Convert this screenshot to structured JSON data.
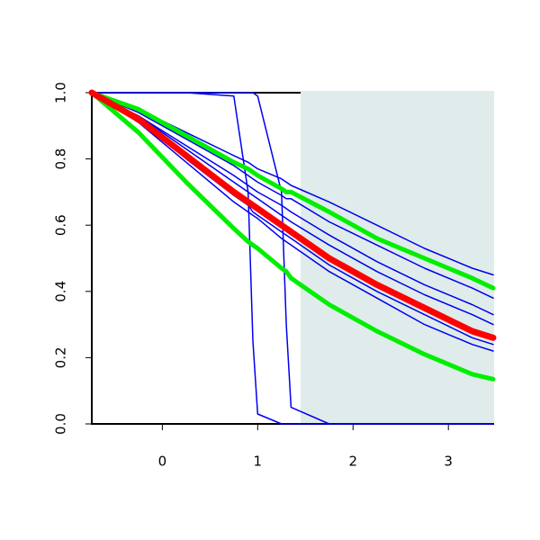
{
  "chart_data": {
    "type": "line",
    "x": [
      -0.74,
      -0.25,
      0.25,
      0.75,
      0.9,
      0.95,
      1.0,
      1.25,
      1.3,
      1.35,
      1.75,
      2.25,
      2.75,
      3.25,
      3.47
    ],
    "xlim": [
      -0.74,
      3.47
    ],
    "ylim": [
      0,
      1
    ],
    "xticks": [
      0,
      1,
      2,
      3
    ],
    "yticks": [
      {
        "value": 0,
        "label": "0.0"
      },
      0.2,
      0.4,
      0.6,
      0.8,
      {
        "value": 1,
        "label": "1.0"
      }
    ],
    "shaded_region": {
      "xmin": 1.45,
      "color": "#dfeceb"
    },
    "series": [
      {
        "color": "#0000ee",
        "width": 1.5,
        "values": [
          1,
          0.95,
          0.88,
          0.81,
          0.79,
          0.78,
          0.77,
          0.74,
          0.73,
          0.72,
          0.67,
          0.6,
          0.53,
          0.47,
          0.45
        ]
      },
      {
        "color": "#0000ee",
        "width": 1.5,
        "values": [
          1,
          0.94,
          0.86,
          0.78,
          0.75,
          0.74,
          0.73,
          0.69,
          0.68,
          0.68,
          0.61,
          0.54,
          0.47,
          0.41,
          0.38
        ]
      },
      {
        "color": "#0000ee",
        "width": 1.5,
        "values": [
          1,
          0.93,
          0.84,
          0.75,
          0.72,
          0.71,
          0.7,
          0.66,
          0.65,
          0.64,
          0.57,
          0.49,
          0.42,
          0.36,
          0.33
        ]
      },
      {
        "color": "#0000ee",
        "width": 1.5,
        "values": [
          1,
          0.93,
          0.83,
          0.73,
          0.7,
          0.69,
          0.68,
          0.63,
          0.62,
          0.61,
          0.54,
          0.46,
          0.39,
          0.33,
          0.3
        ]
      },
      {
        "color": "#0000ee",
        "width": 1.5,
        "values": [
          1,
          0.92,
          0.8,
          0.69,
          0.66,
          0.64,
          0.63,
          0.58,
          0.57,
          0.56,
          0.48,
          0.4,
          0.33,
          0.26,
          0.24
        ]
      },
      {
        "color": "#0000ee",
        "width": 1.5,
        "values": [
          1,
          0.91,
          0.79,
          0.67,
          0.64,
          0.63,
          0.62,
          0.56,
          0.55,
          0.54,
          0.46,
          0.38,
          0.3,
          0.24,
          0.22
        ]
      },
      {
        "color": "#0000ee",
        "width": 1.5,
        "values": [
          1,
          1,
          1,
          0.99,
          0.7,
          0.25,
          0.03,
          0,
          0,
          0,
          0,
          0,
          0,
          0,
          0
        ]
      },
      {
        "color": "#0000ee",
        "width": 1.5,
        "values": [
          1,
          1,
          1,
          1,
          1,
          1,
          0.99,
          0.7,
          0.3,
          0.05,
          0,
          0,
          0,
          0,
          0
        ]
      },
      {
        "color": "#00ee00",
        "width": 5,
        "values": [
          1,
          0.88,
          0.73,
          0.59,
          0.55,
          0.54,
          0.53,
          0.47,
          0.46,
          0.44,
          0.36,
          0.28,
          0.21,
          0.15,
          0.135
        ]
      },
      {
        "color": "#00ee00",
        "width": 5,
        "values": [
          1,
          0.95,
          0.87,
          0.79,
          0.77,
          0.76,
          0.75,
          0.71,
          0.7,
          0.7,
          0.64,
          0.56,
          0.5,
          0.44,
          0.41
        ]
      },
      {
        "color": "#ff0000",
        "width": 7,
        "values": [
          1,
          0.92,
          0.81,
          0.7,
          0.67,
          0.66,
          0.65,
          0.6,
          0.59,
          0.58,
          0.5,
          0.42,
          0.35,
          0.28,
          0.26
        ]
      }
    ]
  }
}
